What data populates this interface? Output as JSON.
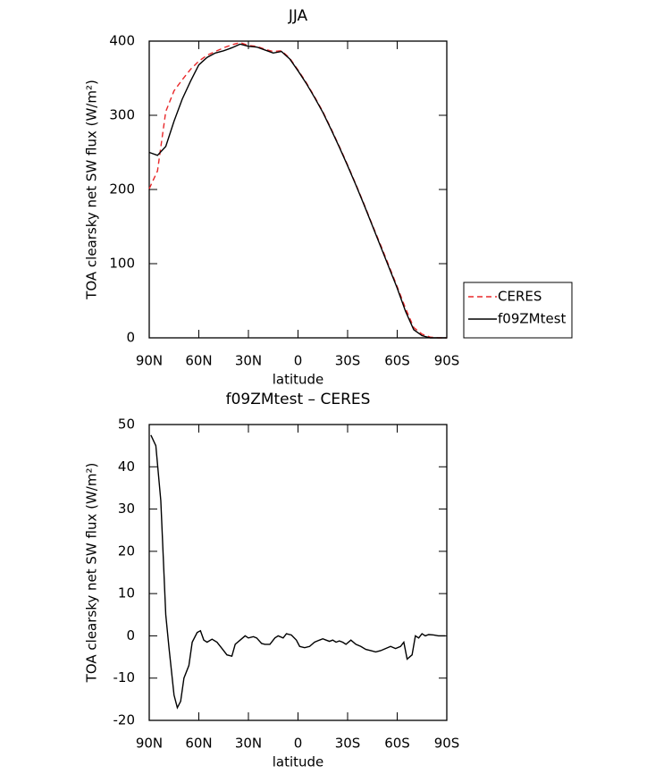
{
  "chart_data": [
    {
      "type": "line",
      "title": "JJA",
      "ylabel": "TOA clearsky net SW flux (W/m²)",
      "xlabel": "latitude",
      "x": [
        90,
        85,
        80,
        75,
        70,
        65,
        60,
        55,
        50,
        45,
        40,
        35,
        30,
        25,
        20,
        15,
        10,
        5,
        0,
        -5,
        -10,
        -15,
        -20,
        -25,
        -30,
        -35,
        -40,
        -45,
        -50,
        -55,
        -60,
        -65,
        -70,
        -75,
        -80,
        -85,
        -90
      ],
      "series": [
        {
          "name": "CERES",
          "color": "#e8282a",
          "dashed": true,
          "values": [
            201,
            225,
            305,
            333,
            348,
            362,
            373,
            381,
            386,
            391,
            395,
            398,
            394,
            393,
            389,
            386,
            387,
            377,
            361,
            344,
            325,
            305,
            282,
            258,
            233,
            207,
            180,
            152,
            125,
            97,
            69,
            40,
            14,
            5,
            1,
            0,
            0
          ]
        },
        {
          "name": "f09ZMtest",
          "color": "#000000",
          "dashed": false,
          "values": [
            250,
            246,
            258,
            292,
            322,
            346,
            368,
            378,
            384,
            387,
            391,
            396,
            393,
            392,
            388,
            384,
            386,
            376,
            360,
            343,
            324,
            304,
            281,
            257,
            232,
            206,
            179,
            151,
            123,
            95,
            67,
            36,
            11,
            3,
            0,
            0,
            0
          ]
        }
      ],
      "xlim": [
        90,
        -90
      ],
      "xticks": [
        {
          "value": 90,
          "label": "90N"
        },
        {
          "value": 60,
          "label": "60N"
        },
        {
          "value": 30,
          "label": "30N"
        },
        0,
        {
          "value": -30,
          "label": "30S"
        },
        {
          "value": -60,
          "label": "60S"
        },
        {
          "value": -90,
          "label": "90S"
        }
      ],
      "ylim": [
        0,
        400
      ],
      "yticks": [
        0,
        100,
        200,
        300,
        400
      ],
      "legend": "outside-right"
    },
    {
      "type": "line",
      "title": "f09ZMtest – CERES",
      "ylabel": "TOA clearsky net SW flux (W/m²)",
      "xlabel": "latitude",
      "x": [
        89,
        86,
        83,
        80,
        78,
        75,
        73,
        71,
        69,
        66,
        64,
        61,
        59,
        57,
        55,
        52,
        49,
        46,
        43,
        40,
        38,
        35,
        32,
        30,
        27,
        25,
        22,
        20,
        17,
        14,
        12,
        9,
        7,
        4,
        1,
        -1,
        -4,
        -7,
        -10,
        -13,
        -15,
        -17,
        -19,
        -21,
        -23,
        -25,
        -27,
        -29,
        -32,
        -35,
        -38,
        -41,
        -44,
        -47,
        -50,
        -53,
        -56,
        -59,
        -62,
        -64,
        -66,
        -69,
        -71,
        -73,
        -75,
        -77,
        -79,
        -82,
        -85,
        -89
      ],
      "values": [
        47.5,
        45,
        32,
        5,
        -3,
        -14,
        -17,
        -15.5,
        -10,
        -7,
        -1.5,
        0.8,
        1.2,
        -1,
        -1.5,
        -0.8,
        -1.5,
        -3,
        -4.5,
        -4.8,
        -2,
        -1,
        0,
        -0.5,
        -0.2,
        -0.5,
        -1.8,
        -2,
        -2,
        -0.5,
        0,
        -0.5,
        0.5,
        0.2,
        -1,
        -2.5,
        -2.8,
        -2.5,
        -1.5,
        -1,
        -0.7,
        -1,
        -1.3,
        -1,
        -1.5,
        -1.2,
        -1.5,
        -2,
        -1,
        -2,
        -2.5,
        -3.2,
        -3.5,
        -3.8,
        -3.5,
        -3,
        -2.5,
        -3,
        -2.5,
        -1.5,
        -5.5,
        -4.5,
        0,
        -0.5,
        0.5,
        0,
        0.3,
        0.2,
        0,
        0
      ],
      "color": "#000000",
      "xlim": [
        90,
        -90
      ],
      "xticks": [
        {
          "value": 90,
          "label": "90N"
        },
        {
          "value": 60,
          "label": "60N"
        },
        {
          "value": 30,
          "label": "30N"
        },
        0,
        {
          "value": -30,
          "label": "30S"
        },
        {
          "value": -60,
          "label": "60S"
        },
        {
          "value": -90,
          "label": "90S"
        }
      ],
      "ylim": [
        -20,
        50
      ],
      "yticks": [
        -20,
        -10,
        0,
        10,
        20,
        30,
        40,
        50
      ]
    }
  ]
}
